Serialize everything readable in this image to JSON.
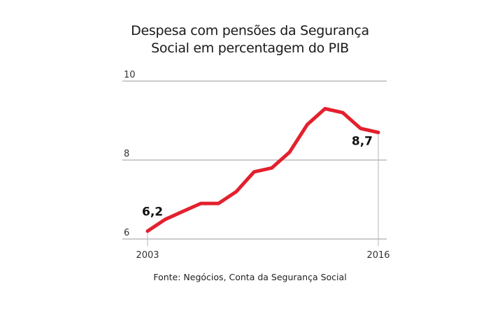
{
  "chart_data": {
    "type": "line",
    "title": "Despesa com pensões da Segurança Social em percentagem do PIB",
    "title_lines": [
      "Despesa com pensões da Segurança",
      "Social em percentagem do PIB"
    ],
    "source": "Fonte: Negócios, Conta da Segurança Social",
    "x_tick_labels": [
      "2003",
      "2016"
    ],
    "y_tick_labels": [
      "10",
      "8",
      "6"
    ],
    "y_ticks": [
      10,
      8,
      6
    ],
    "ylim": [
      6,
      10
    ],
    "xlim": [
      2003,
      2016
    ],
    "grid": "horizontal",
    "series": [
      {
        "color": "#e3202e",
        "x": [
          2003,
          2004,
          2005,
          2006,
          2007,
          2008,
          2009,
          2010,
          2011,
          2012,
          2013,
          2014,
          2015,
          2016
        ],
        "values": [
          6.2,
          6.5,
          6.7,
          6.9,
          6.9,
          7.2,
          7.7,
          7.8,
          8.2,
          8.9,
          9.3,
          9.2,
          8.8,
          8.7
        ]
      }
    ],
    "annotations": [
      {
        "text": "6,2",
        "x": 2003,
        "y": 6.2
      },
      {
        "text": "8,7",
        "x": 2016,
        "y": 8.7
      }
    ]
  }
}
